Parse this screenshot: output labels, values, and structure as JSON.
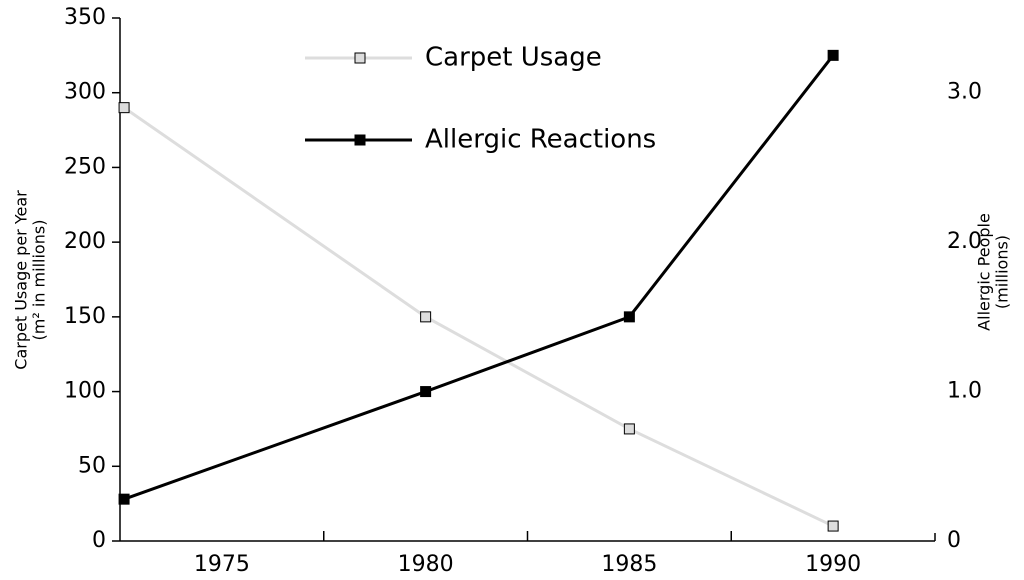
{
  "chart_data": {
    "type": "line",
    "y_label": [
      "Carpet Usage per Year",
      "(m² in millions)"
    ],
    "y2_label": [
      "Allergic People",
      "(millions)"
    ],
    "x": [
      1972.6,
      1980,
      1985,
      1990
    ],
    "xlim": [
      1972.5,
      1992.5
    ],
    "xticks": [
      1975,
      1980,
      1985,
      1990
    ],
    "xtick_marks": [
      1977.5,
      1982.5,
      1987.5
    ],
    "ylim": [
      0,
      350
    ],
    "yticks": [
      0,
      50,
      100,
      150,
      200,
      250,
      300,
      350
    ],
    "y2lim": [
      0,
      3.5
    ],
    "y2ticks": [
      0,
      {
        "value": 1,
        "label": "1.0"
      },
      {
        "value": 2,
        "label": "2.0"
      },
      {
        "value": 3,
        "label": "3.0"
      }
    ],
    "series": [
      {
        "name": "Carpet Usage",
        "color": "#dddddd",
        "marker_fill": "#dddddd",
        "values": [
          290,
          150,
          75,
          10
        ]
      },
      {
        "name": "Allergic Reactions",
        "color": "#000000",
        "marker_fill": "#000000",
        "axis": "y2",
        "values": [
          0.28,
          1.0,
          1.5,
          3.25
        ]
      }
    ],
    "legend": "top"
  }
}
